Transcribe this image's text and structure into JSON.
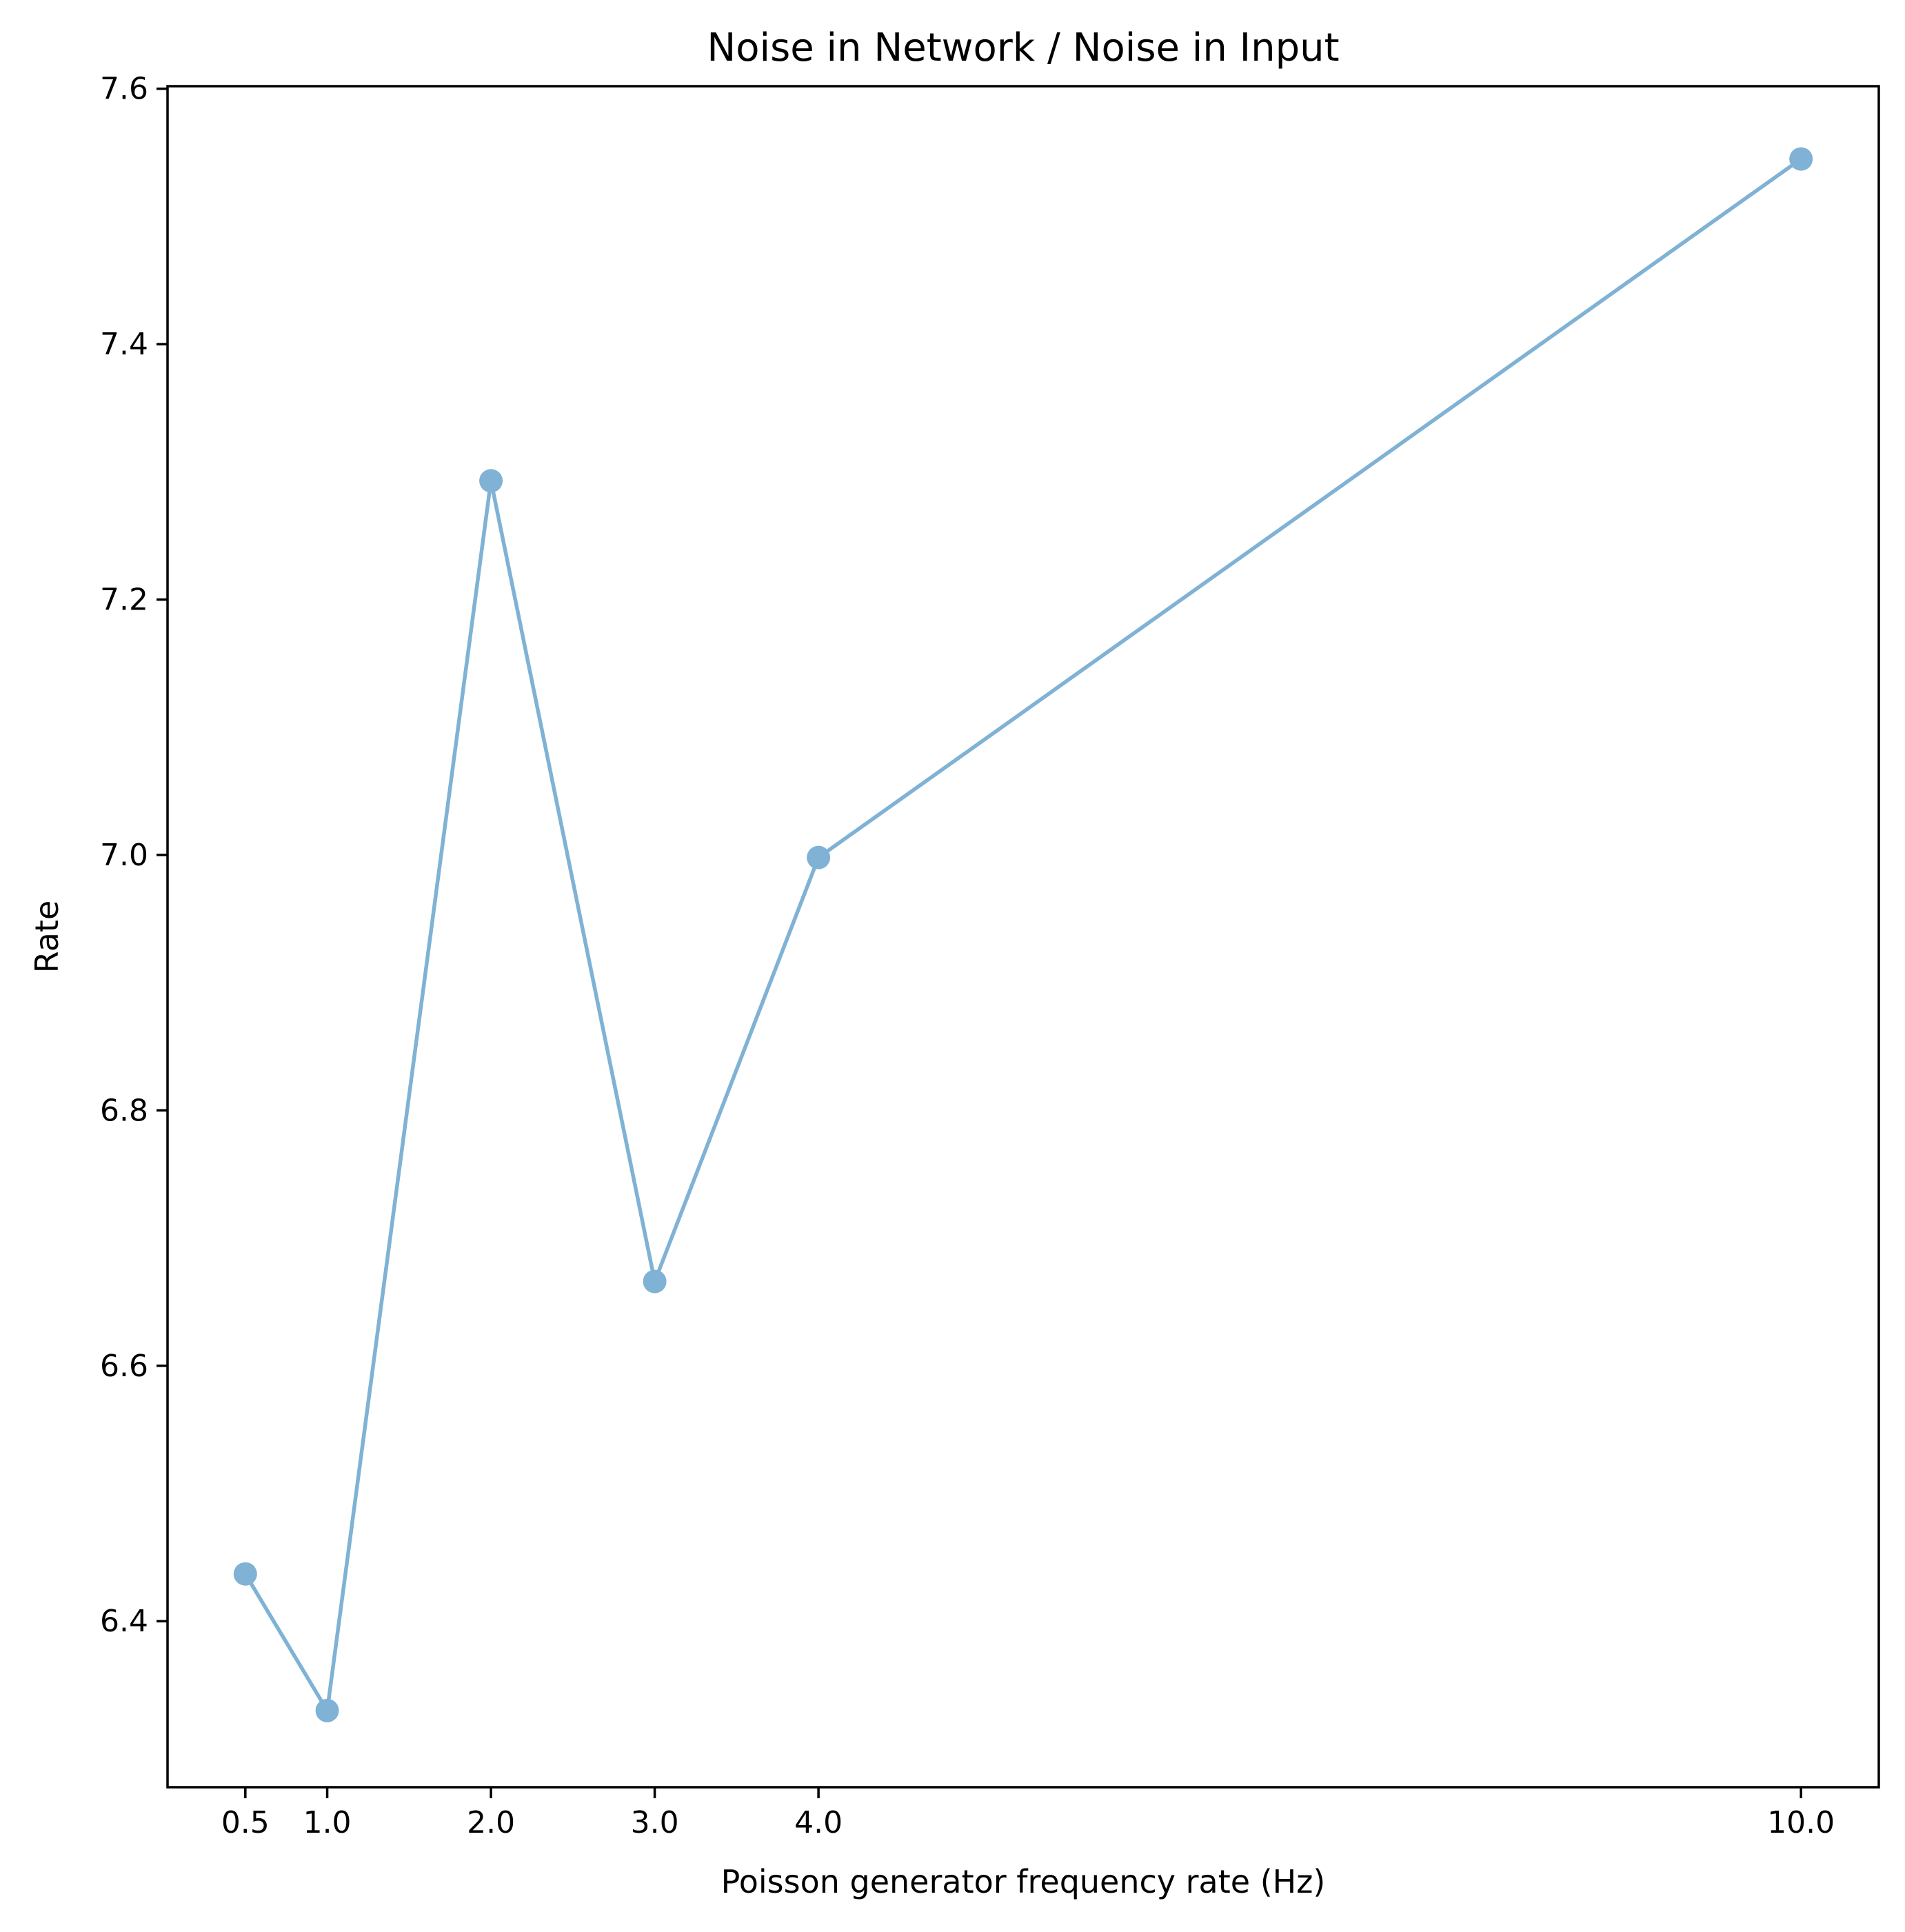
{
  "chart_data": {
    "type": "line",
    "title": "Noise in Network / Noise in Input",
    "xlabel": "Poisson generator frequency rate (Hz)",
    "ylabel": "Rate",
    "x": [
      0.5,
      1.0,
      2.0,
      3.0,
      4.0,
      10.0
    ],
    "xticks": [
      0.5,
      1.0,
      2.0,
      3.0,
      4.0,
      10.0
    ],
    "xtick_labels": [
      "0.5",
      "1.0",
      "2.0",
      "3.0",
      "4.0",
      "10.0"
    ],
    "yticks": [
      6.4,
      6.6,
      6.8,
      7.0,
      7.2,
      7.4,
      7.6
    ],
    "ytick_labels": [
      "6.4",
      "6.6",
      "6.8",
      "7.0",
      "7.2",
      "7.4",
      "7.6"
    ],
    "xlim": [
      0.025,
      10.475
    ],
    "ylim": [
      6.27,
      7.602
    ],
    "series": [
      {
        "name": "",
        "values": [
          6.437,
          6.33,
          7.293,
          6.666,
          6.998,
          7.545
        ]
      }
    ],
    "grid": false,
    "colors": {
      "line": "#7fb2d5",
      "axes": "#000000"
    }
  }
}
